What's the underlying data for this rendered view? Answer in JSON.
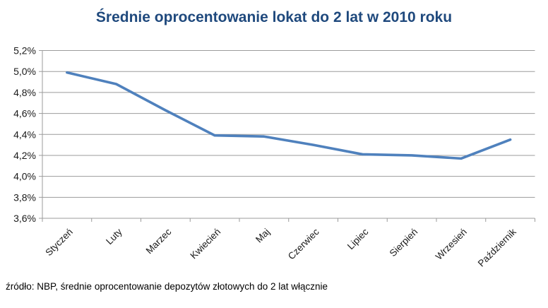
{
  "header": {
    "title": "Średnie oprocentowanie lokat do 2 lat w 2010 roku"
  },
  "footer": {
    "source_note": "źródło: NBP, średnie oprocentowanie depozytów złotowych do 2 lat włącznie"
  },
  "colors": {
    "background": "#ffffff",
    "title": "#1F497D",
    "line": "#4F81BD",
    "gridline": "#9B9B9B",
    "axis": "#9B9B9B",
    "tick_label": "#1a1a1a"
  },
  "chart_data": {
    "type": "line",
    "title": "Średnie oprocentowanie lokat do 2 lat w 2010 roku",
    "categories": [
      "Styczeń",
      "Luty",
      "Marzec",
      "Kwiecień",
      "Maj",
      "Czerwiec",
      "Lipiec",
      "Sierpień",
      "Wrzesień",
      "Październik"
    ],
    "values": [
      4.99,
      4.88,
      4.63,
      4.39,
      4.38,
      4.3,
      4.21,
      4.2,
      4.17,
      4.35
    ],
    "values_unit": "%",
    "xlabel": "",
    "ylabel": "",
    "ylim": [
      3.6,
      5.2
    ],
    "y_tick_step": 0.2,
    "y_tick_labels_top_to_bottom": [
      "5,2%",
      "5,0%",
      "4,8%",
      "4,6%",
      "4,4%",
      "4,2%",
      "4,0%",
      "3,8%",
      "3,6%"
    ],
    "grid": "horizontal",
    "legend": "none",
    "x_label_rotation_deg": -45
  }
}
